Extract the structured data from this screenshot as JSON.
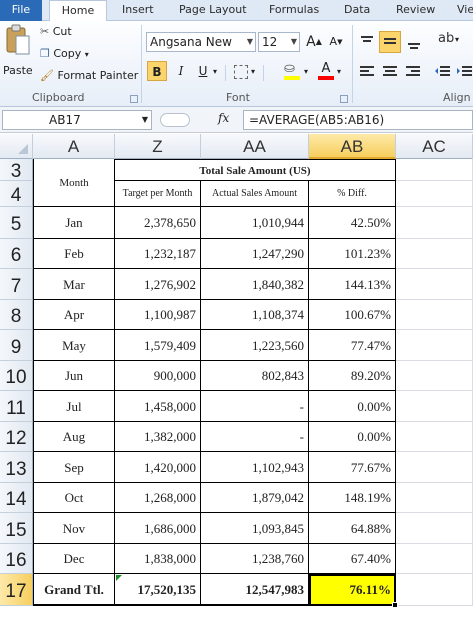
{
  "ribbon": {
    "tabs": [
      "File",
      "Home",
      "Insert",
      "Page Layout",
      "Formulas",
      "Data",
      "Review",
      "Vie"
    ],
    "clipboard": {
      "paste": "Paste",
      "cut": "Cut",
      "copy": "Copy",
      "format_painter": "Format Painter",
      "label": "Clipboard"
    },
    "font": {
      "name": "Angsana New",
      "size": "12",
      "grow": "A",
      "shrink": "A",
      "bold": "B",
      "italic": "I",
      "underline": "U",
      "font_color": "A",
      "label": "Font"
    },
    "alignment": {
      "label": "Align"
    }
  },
  "formula_bar": {
    "name_box": "AB17",
    "fx": "fx",
    "formula": "=AVERAGE(AB5:AB16)"
  },
  "columns": [
    "A",
    "Z",
    "AA",
    "AB",
    "AC"
  ],
  "rows": [
    "3",
    "4",
    "5",
    "6",
    "7",
    "8",
    "9",
    "10",
    "11",
    "12",
    "13",
    "14",
    "15",
    "16",
    "17"
  ],
  "table": {
    "month_header": "Month",
    "group_header": "Total Sale Amount (US)",
    "sub_headers": [
      "Target per Month",
      "Actual Sales Amount",
      "% Diff."
    ],
    "data": [
      [
        "Jan",
        "2,378,650",
        "1,010,944",
        "42.50%"
      ],
      [
        "Feb",
        "1,232,187",
        "1,247,290",
        "101.23%"
      ],
      [
        "Mar",
        "1,276,902",
        "1,840,382",
        "144.13%"
      ],
      [
        "Apr",
        "1,100,987",
        "1,108,374",
        "100.67%"
      ],
      [
        "May",
        "1,579,409",
        "1,223,560",
        "77.47%"
      ],
      [
        "Jun",
        "900,000",
        "802,843",
        "89.20%"
      ],
      [
        "Jul",
        "1,458,000",
        "-",
        "0.00%"
      ],
      [
        "Aug",
        "1,382,000",
        "-",
        "0.00%"
      ],
      [
        "Sep",
        "1,420,000",
        "1,102,943",
        "77.67%"
      ],
      [
        "Oct",
        "1,268,000",
        "1,879,042",
        "148.19%"
      ],
      [
        "Nov",
        "1,686,000",
        "1,093,845",
        "64.88%"
      ],
      [
        "Dec",
        "1,838,000",
        "1,238,760",
        "67.40%"
      ]
    ],
    "total": [
      "Grand Ttl.",
      "17,520,135",
      "12,547,983",
      "76.11%"
    ]
  },
  "colors": {
    "selected_fill": "#ffff00",
    "selected_col_header": "#f9d66b",
    "file_tab": "#2a6ab7"
  }
}
